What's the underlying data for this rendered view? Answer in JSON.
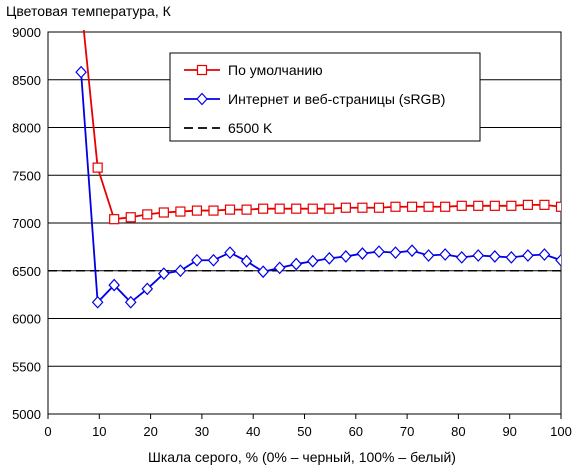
{
  "chart_data": {
    "type": "line",
    "title": "",
    "ylabel": "Цветовая температура, К",
    "xlabel": "Шкала серого, % (0% – черный, 100% – белый)",
    "xlim": [
      0,
      100
    ],
    "ylim": [
      5000,
      9000
    ],
    "xticks": [
      0,
      10,
      20,
      30,
      40,
      50,
      60,
      70,
      80,
      90,
      100
    ],
    "yticks": [
      5000,
      5500,
      6000,
      6500,
      7000,
      7500,
      8000,
      8500,
      9000
    ],
    "grid": true,
    "legend_position": "top-center",
    "series": [
      {
        "name": "По умолчанию",
        "color": "#e60000",
        "marker": "square",
        "x": [
          6.45,
          9.68,
          12.9,
          16.13,
          19.35,
          22.58,
          25.81,
          29.03,
          32.26,
          35.48,
          38.71,
          41.94,
          45.16,
          48.39,
          51.61,
          54.84,
          58.06,
          61.29,
          64.52,
          67.74,
          70.97,
          74.19,
          77.42,
          80.65,
          83.87,
          87.1,
          90.32,
          93.55,
          96.77,
          100
        ],
        "y": [
          9300,
          7580,
          7040,
          7060,
          7090,
          7110,
          7120,
          7130,
          7130,
          7140,
          7140,
          7150,
          7150,
          7150,
          7150,
          7150,
          7160,
          7160,
          7160,
          7170,
          7170,
          7170,
          7170,
          7180,
          7180,
          7180,
          7180,
          7190,
          7190,
          7170
        ]
      },
      {
        "name": "Интернет и веб-страницы (sRGB)",
        "color": "#0000e6",
        "marker": "diamond",
        "x": [
          6.45,
          9.68,
          12.9,
          16.13,
          19.35,
          22.58,
          25.81,
          29.03,
          32.26,
          35.48,
          38.71,
          41.94,
          45.16,
          48.39,
          51.61,
          54.84,
          58.06,
          61.29,
          64.52,
          67.74,
          70.97,
          74.19,
          77.42,
          80.65,
          83.87,
          87.1,
          90.32,
          93.55,
          96.77,
          100
        ],
        "y": [
          8580,
          6170,
          6350,
          6170,
          6310,
          6470,
          6500,
          6610,
          6610,
          6690,
          6600,
          6490,
          6530,
          6570,
          6600,
          6630,
          6650,
          6680,
          6700,
          6690,
          6710,
          6660,
          6670,
          6640,
          6660,
          6650,
          6640,
          6660,
          6670,
          6610
        ]
      },
      {
        "name": "6500 K",
        "color": "#000000",
        "dash": true,
        "x": [
          0,
          100
        ],
        "y": [
          6500,
          6500
        ]
      }
    ]
  }
}
